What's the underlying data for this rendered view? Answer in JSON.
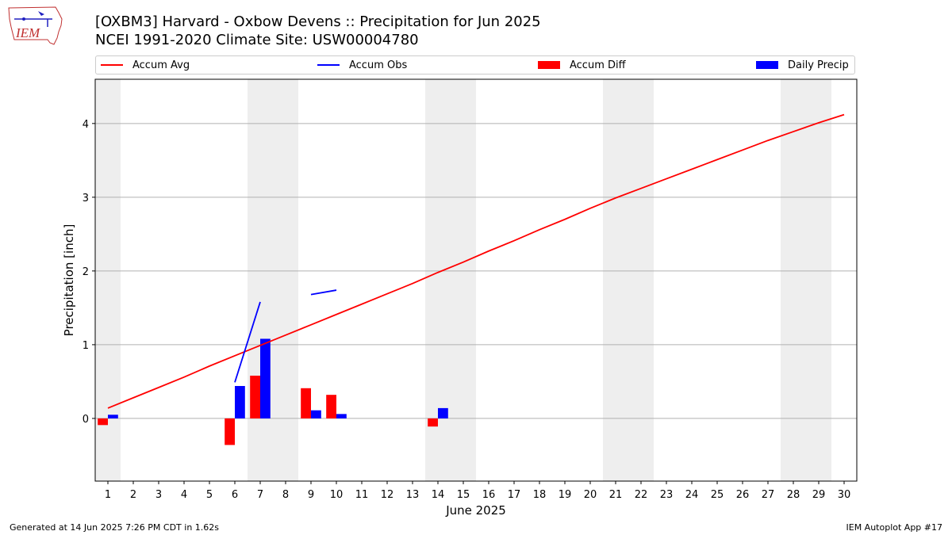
{
  "header": {
    "title_line1": "[OXBM3] Harvard - Oxbow Devens :: Precipitation for Jun 2025",
    "title_line2": "NCEI 1991-2020 Climate Site: USW00004780",
    "logo_text": "IEM"
  },
  "legend": {
    "accum_avg": "Accum Avg",
    "accum_obs": "Accum Obs",
    "accum_diff": "Accum Diff",
    "daily_precip": "Daily Precip"
  },
  "footer": {
    "left": "Generated at 14 Jun 2025 7:26 PM CDT in 1.62s",
    "right": "IEM Autoplot App #17"
  },
  "colors": {
    "accum_avg": "#ff0000",
    "accum_obs": "#0000ff",
    "accum_diff": "#ff0000",
    "daily_precip": "#0000ff",
    "weekend_shade": "#eeeeee",
    "grid": "#b0b0b0"
  },
  "chart_data": {
    "type": "bar",
    "xlabel": "June 2025",
    "ylabel": "Precipitation [inch]",
    "xlim": [
      0.5,
      30.5
    ],
    "ylim": [
      -0.85,
      4.6
    ],
    "yticks": [
      0,
      1,
      2,
      3,
      4
    ],
    "grid": "horizontal",
    "legend_position": "top",
    "days": [
      1,
      2,
      3,
      4,
      5,
      6,
      7,
      8,
      9,
      10,
      11,
      12,
      13,
      14,
      15,
      16,
      17,
      18,
      19,
      20,
      21,
      22,
      23,
      24,
      25,
      26,
      27,
      28,
      29,
      30
    ],
    "weekend_shaded_days": [
      1,
      7,
      8,
      14,
      15,
      21,
      22,
      28,
      29
    ],
    "series": [
      {
        "name": "Accum Avg",
        "kind": "line",
        "values": [
          0.14,
          0.28,
          0.42,
          0.56,
          0.71,
          0.85,
          0.99,
          1.13,
          1.27,
          1.41,
          1.55,
          1.69,
          1.83,
          1.98,
          2.12,
          2.27,
          2.41,
          2.56,
          2.7,
          2.85,
          2.99,
          3.12,
          3.25,
          3.38,
          3.51,
          3.64,
          3.77,
          3.89,
          4.01,
          4.12
        ]
      },
      {
        "name": "Accum Obs",
        "kind": "line",
        "segments": [
          [
            [
              6,
              0.49
            ],
            [
              7,
              1.58
            ]
          ],
          [
            [
              9,
              1.68
            ],
            [
              10,
              1.74
            ]
          ]
        ]
      },
      {
        "name": "Accum Diff",
        "kind": "bar",
        "points": [
          [
            1,
            -0.09
          ],
          [
            6,
            -0.36
          ],
          [
            7,
            0.58
          ],
          [
            9,
            0.41
          ],
          [
            10,
            0.32
          ],
          [
            14,
            -0.11
          ]
        ]
      },
      {
        "name": "Daily Precip",
        "kind": "bar",
        "points": [
          [
            1,
            0.05
          ],
          [
            6,
            0.44
          ],
          [
            7,
            1.08
          ],
          [
            9,
            0.11
          ],
          [
            10,
            0.06
          ],
          [
            14,
            0.14
          ]
        ]
      }
    ]
  }
}
